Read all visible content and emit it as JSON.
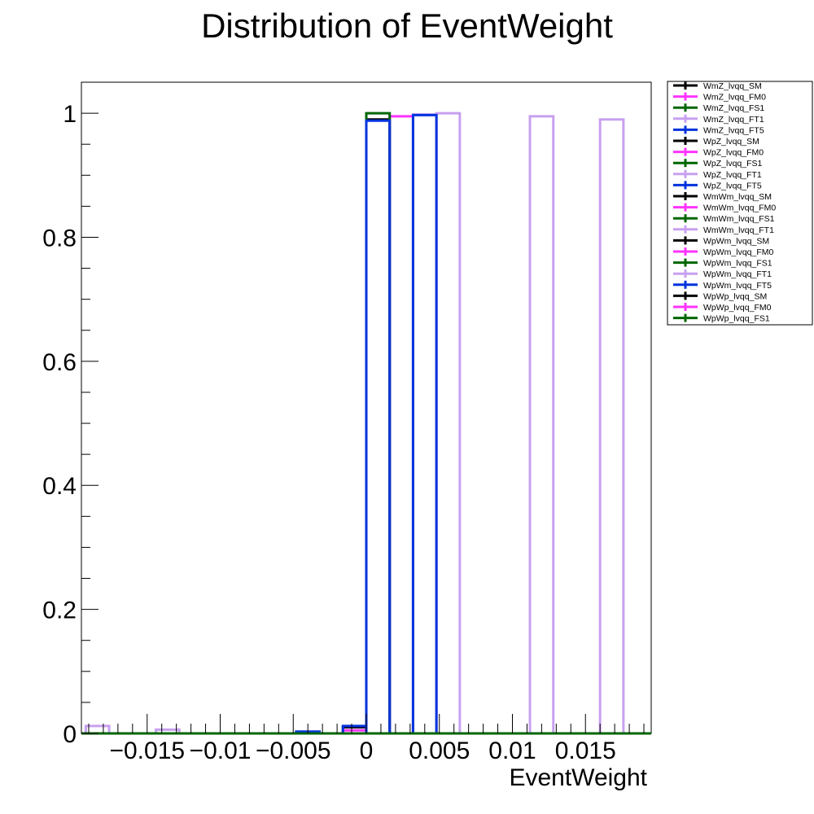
{
  "chart_data": {
    "type": "bar",
    "title": "Distribution of EventWeight",
    "xlabel": "EventWeight",
    "ylabel": "",
    "xlim": [
      -0.0195,
      0.0195
    ],
    "ylim": [
      0,
      1.05
    ],
    "x_ticks": [
      -0.015,
      -0.01,
      -0.005,
      0,
      0.005,
      0.01,
      0.015
    ],
    "x_tick_labels": [
      "−0.015",
      "−0.01",
      "−0.005",
      "0",
      "0.005",
      "0.01",
      "0.015"
    ],
    "y_ticks": [
      0,
      0.2,
      0.4,
      0.6,
      0.8,
      1
    ],
    "y_tick_labels": [
      "0",
      "0.2",
      "0.4",
      "0.6",
      "0.8",
      "1"
    ],
    "bin_width": 0.0016,
    "grid": false,
    "legend_position": "right",
    "series": [
      {
        "name": "WmZ_lvqq_SM",
        "color": "#000000",
        "bars": [
          {
            "x0": -0.0016,
            "x1": 0.0,
            "y": 0.01
          },
          {
            "x0": 0.0,
            "x1": 0.0016,
            "y": 0.99
          }
        ]
      },
      {
        "name": "WmZ_lvqq_FM0",
        "color": "#ff33ff",
        "bars": [
          {
            "x0": -0.0016,
            "x1": 0.0,
            "y": 0.005
          },
          {
            "x0": 0.0016,
            "x1": 0.0032,
            "y": 0.995
          }
        ]
      },
      {
        "name": "WmZ_lvqq_FS1",
        "color": "#006600",
        "bars": [
          {
            "x0": -0.0016,
            "x1": 0.0,
            "y": 0.0
          },
          {
            "x0": 0.0,
            "x1": 0.0016,
            "y": 1.0
          }
        ]
      },
      {
        "name": "WmZ_lvqq_FT1",
        "color": "#c8a0f0",
        "bars": [
          {
            "x0": -0.0192,
            "x1": -0.0176,
            "y": 0.012
          },
          {
            "x0": -0.0144,
            "x1": -0.0128,
            "y": 0.006
          },
          {
            "x0": 0.0048,
            "x1": 0.0064,
            "y": 1.0
          }
        ]
      },
      {
        "name": "WmZ_lvqq_FT5",
        "color": "#0033dd",
        "bars": [
          {
            "x0": -0.0048,
            "x1": -0.0032,
            "y": 0.003
          },
          {
            "x0": -0.0016,
            "x1": 0.0,
            "y": 0.012
          },
          {
            "x0": 0.0,
            "x1": 0.0016,
            "y": 0.988
          }
        ]
      },
      {
        "name": "WpZ_lvqq_SM",
        "color": "#000000",
        "bars": []
      },
      {
        "name": "WpZ_lvqq_FM0",
        "color": "#ff33ff",
        "bars": []
      },
      {
        "name": "WpZ_lvqq_FS1",
        "color": "#006600",
        "bars": []
      },
      {
        "name": "WpZ_lvqq_FT1",
        "color": "#c8a0f0",
        "bars": [
          {
            "x0": 0.0032,
            "x1": 0.0048,
            "y": 0.998
          },
          {
            "x0": 0.0112,
            "x1": 0.0128,
            "y": 0.995
          },
          {
            "x0": 0.016,
            "x1": 0.0176,
            "y": 0.99
          }
        ]
      },
      {
        "name": "WpZ_lvqq_FT5",
        "color": "#0033dd",
        "bars": [
          {
            "x0": 0.0032,
            "x1": 0.0048,
            "y": 0.997
          }
        ]
      },
      {
        "name": "WmWm_lvqq_SM",
        "color": "#000000",
        "bars": []
      },
      {
        "name": "WmWm_lvqq_FM0",
        "color": "#ff33ff",
        "bars": []
      },
      {
        "name": "WmWm_lvqq_FS1",
        "color": "#006600",
        "bars": []
      },
      {
        "name": "WmWm_lvqq_FT1",
        "color": "#c8a0f0",
        "bars": []
      },
      {
        "name": "WpWm_lvqq_SM",
        "color": "#000000",
        "bars": []
      },
      {
        "name": "WpWm_lvqq_FM0",
        "color": "#ff33ff",
        "bars": []
      },
      {
        "name": "WpWm_lvqq_FS1",
        "color": "#006600",
        "bars": []
      },
      {
        "name": "WpWm_lvqq_FT1",
        "color": "#c8a0f0",
        "bars": []
      },
      {
        "name": "WpWm_lvqq_FT5",
        "color": "#0033dd",
        "bars": []
      },
      {
        "name": "WpWp_lvqq_SM",
        "color": "#000000",
        "bars": []
      },
      {
        "name": "WpWp_lvqq_FM0",
        "color": "#ff33ff",
        "bars": []
      },
      {
        "name": "WpWp_lvqq_FS1",
        "color": "#006600",
        "bars": []
      }
    ]
  }
}
